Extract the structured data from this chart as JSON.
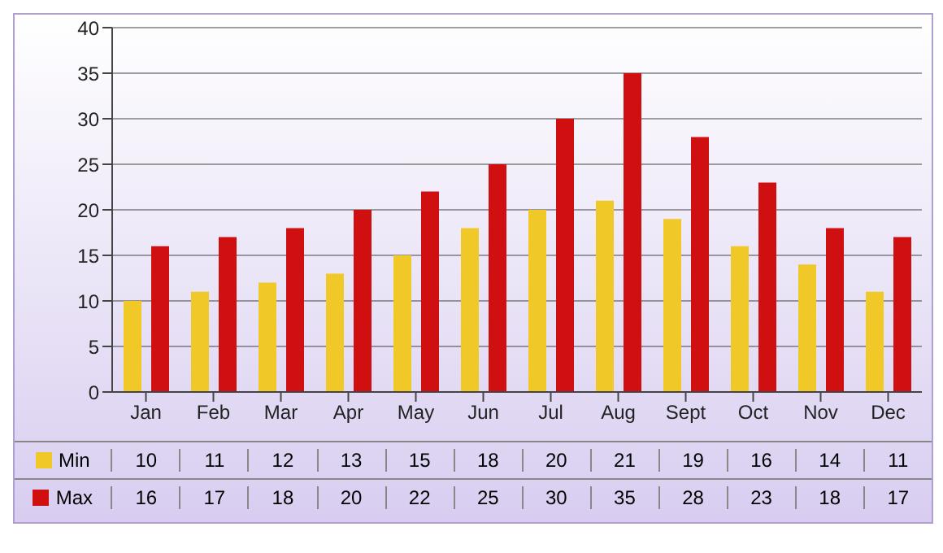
{
  "chart_data": {
    "type": "bar",
    "categories": [
      "Jan",
      "Feb",
      "Mar",
      "Apr",
      "May",
      "Jun",
      "Jul",
      "Aug",
      "Sept",
      "Oct",
      "Nov",
      "Dec"
    ],
    "series": [
      {
        "name": "Min",
        "color": "#f0c828",
        "values": [
          10,
          11,
          12,
          13,
          15,
          18,
          20,
          21,
          19,
          16,
          14,
          11
        ]
      },
      {
        "name": "Max",
        "color": "#d01010",
        "values": [
          16,
          17,
          18,
          20,
          22,
          25,
          30,
          35,
          28,
          23,
          18,
          17
        ]
      }
    ],
    "ylim": [
      0,
      40
    ],
    "yticks": [
      0,
      5,
      10,
      15,
      20,
      25,
      30,
      35,
      40
    ],
    "grid": "y",
    "legend": "bottom",
    "data_labels": true
  }
}
